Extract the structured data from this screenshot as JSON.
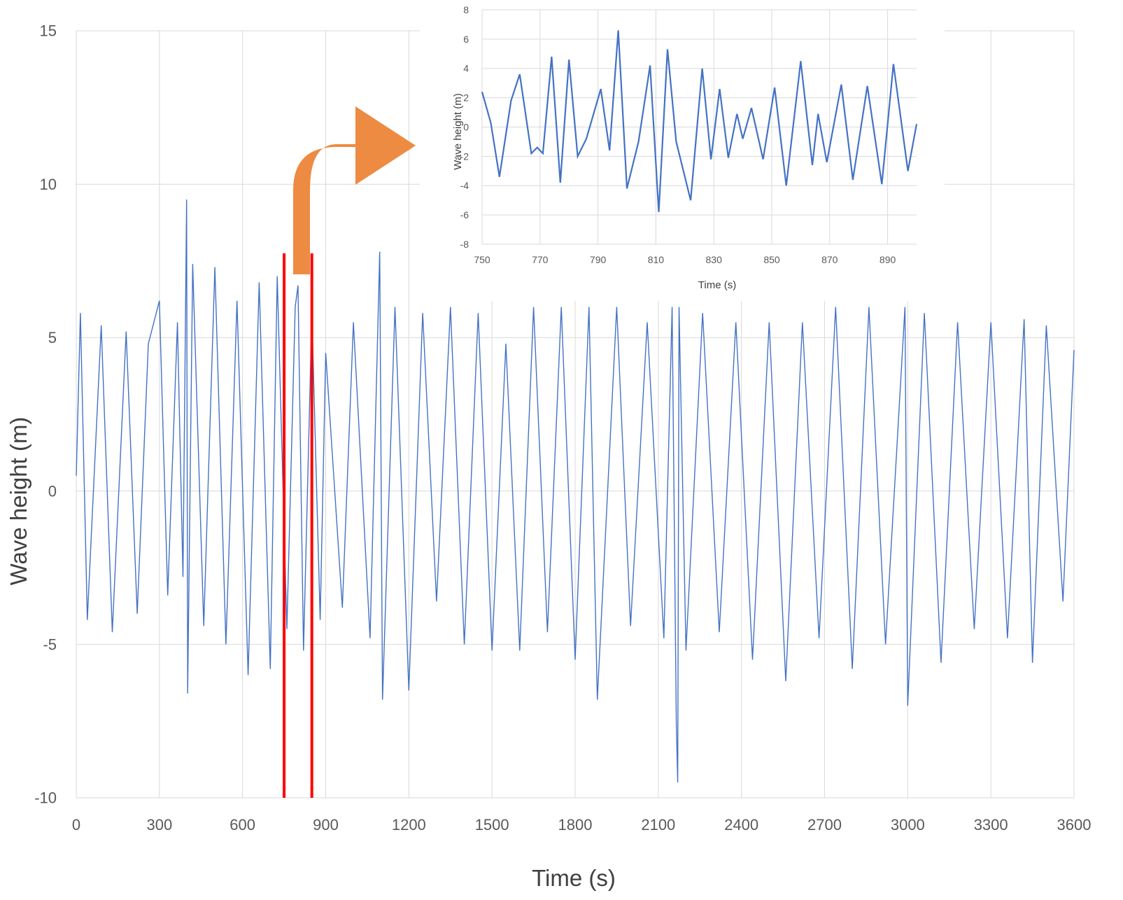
{
  "chart_data": [
    {
      "id": "main",
      "type": "line",
      "xlabel": "Time (s)",
      "ylabel": "Wave height (m)",
      "xlim": [
        0,
        3600
      ],
      "ylim": [
        -10,
        15
      ],
      "xticks": [
        0,
        300,
        600,
        900,
        1200,
        1500,
        1800,
        2100,
        2400,
        2700,
        3000,
        3300,
        3600
      ],
      "yticks": [
        -10,
        -5,
        0,
        5,
        10,
        15
      ],
      "grid": true,
      "line_color": "#4472C4",
      "series": [
        {
          "x": [
            0,
            15,
            40,
            90,
            130,
            180,
            220,
            260,
            300,
            330,
            365,
            385,
            398,
            402,
            420,
            460,
            500,
            540,
            580,
            620,
            660,
            700,
            725,
            760,
            790,
            800,
            820,
            850,
            880,
            900,
            960,
            1000,
            1060,
            1095,
            1105,
            1150,
            1200,
            1250,
            1300,
            1350,
            1400,
            1450,
            1500,
            1550,
            1600,
            1650,
            1700,
            1750,
            1800,
            1850,
            1880,
            1950,
            2000,
            2060,
            2120,
            2150,
            2165,
            2170,
            2175,
            2200,
            2260,
            2320,
            2380,
            2440,
            2500,
            2560,
            2620,
            2680,
            2740,
            2800,
            2860,
            2920,
            2990,
            3000,
            3060,
            3120,
            3180,
            3240,
            3300,
            3360,
            3420,
            3450,
            3500,
            3560,
            3600
          ],
          "y": [
            0.5,
            5.8,
            -4.2,
            5.4,
            -4.6,
            5.2,
            -4.0,
            4.8,
            6.2,
            -3.4,
            5.5,
            -2.8,
            9.5,
            -6.6,
            7.4,
            -4.4,
            7.3,
            -5.0,
            6.2,
            -6.0,
            6.8,
            -5.8,
            7.0,
            -4.5,
            6.0,
            6.7,
            -5.2,
            5.8,
            -4.2,
            4.5,
            -3.8,
            5.5,
            -4.8,
            7.8,
            -6.8,
            6.0,
            -6.5,
            5.8,
            -3.6,
            6.0,
            -5.0,
            5.8,
            -5.2,
            4.8,
            -5.2,
            6.0,
            -4.6,
            6.0,
            -5.5,
            6.0,
            -6.8,
            6.0,
            -4.4,
            5.5,
            -4.8,
            6.0,
            -7.6,
            -9.5,
            6.0,
            -5.2,
            5.8,
            -4.6,
            5.5,
            -5.5,
            5.5,
            -6.2,
            5.5,
            -4.8,
            6.0,
            -5.8,
            6.0,
            -5.0,
            6.0,
            -7.0,
            5.8,
            -5.6,
            5.5,
            -4.5,
            5.5,
            -4.8,
            5.6,
            -5.6,
            5.4,
            -3.6,
            4.6
          ]
        }
      ]
    },
    {
      "id": "inset",
      "type": "line",
      "xlabel": "Time (s)",
      "ylabel": "Wave height (m)",
      "xlim": [
        750,
        900
      ],
      "ylim": [
        -8,
        8
      ],
      "xticks": [
        750,
        770,
        790,
        810,
        830,
        850,
        870,
        890
      ],
      "yticks": [
        -8,
        -6,
        -4,
        -2,
        0,
        2,
        4,
        6,
        8
      ],
      "grid": true,
      "line_color": "#4472C4",
      "series": [
        {
          "x": [
            750,
            753,
            756,
            760,
            763,
            767,
            769,
            771,
            774,
            777,
            780,
            783,
            786,
            791,
            794,
            797,
            800,
            804,
            808,
            811,
            814,
            817,
            822,
            826,
            829,
            832,
            835,
            838,
            840,
            843,
            847,
            851,
            855,
            860,
            864,
            866,
            869,
            874,
            878,
            883,
            888,
            892,
            897,
            900
          ],
          "y": [
            2.4,
            0.3,
            -3.4,
            1.8,
            3.6,
            -1.8,
            -1.4,
            -1.8,
            4.8,
            -3.8,
            4.6,
            -2.0,
            -0.8,
            2.6,
            -1.6,
            6.6,
            -4.2,
            -1.0,
            4.2,
            -5.8,
            5.3,
            -1.0,
            -5.0,
            4.0,
            -2.2,
            2.6,
            -2.1,
            0.9,
            -0.8,
            1.3,
            -2.2,
            2.7,
            -4.0,
            4.5,
            -2.6,
            0.9,
            -2.4,
            2.9,
            -3.6,
            2.8,
            -3.9,
            4.3,
            -3.0,
            0.2
          ]
        }
      ]
    }
  ],
  "colors": {
    "series": "#4472C4",
    "highlight": "#FF0000",
    "arrow": "#ED8B42",
    "grid": "#D9D9D9"
  },
  "highlight_window_s": [
    750,
    850
  ]
}
